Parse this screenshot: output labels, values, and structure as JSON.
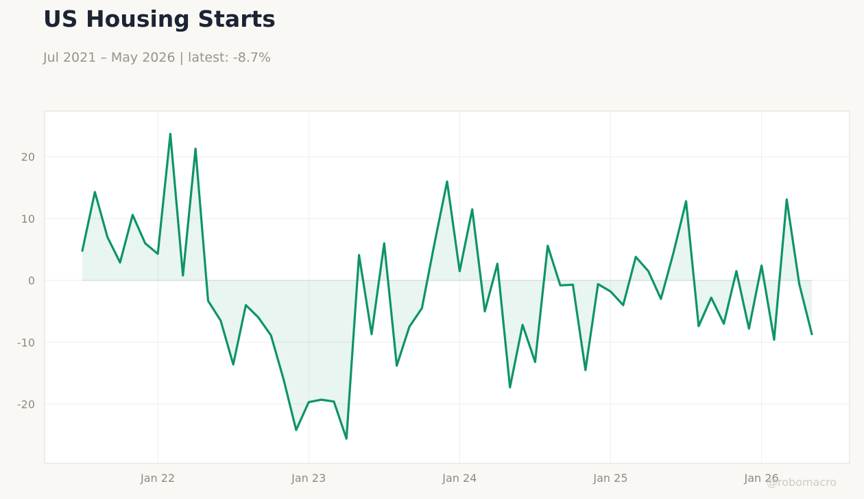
{
  "header": {
    "title": "US Housing Starts",
    "subtitle": "Jul 2021 – May 2026 | latest: -8.7%"
  },
  "watermark": "@robomacro",
  "colors": {
    "background": "#f9f8f5",
    "plot_background": "#ffffff",
    "line": "#0e9467",
    "fill": "#0e9467",
    "grid": "#efeeeb",
    "frame": "#dedcd4",
    "tick_text": "#8d8a84"
  },
  "chart_data": {
    "type": "area",
    "title": "US Housing Starts",
    "subtitle": "Jul 2021 – May 2026 | latest: -8.7%",
    "xlabel": "",
    "ylabel": "",
    "x_start": "2021-07",
    "x_end": "2026-05",
    "x_ticks": [
      {
        "date": "2022-01",
        "label": "Jan 22"
      },
      {
        "date": "2023-01",
        "label": "Jan 23"
      },
      {
        "date": "2024-01",
        "label": "Jan 24"
      },
      {
        "date": "2025-01",
        "label": "Jan 25"
      },
      {
        "date": "2026-01",
        "label": "Jan 26"
      }
    ],
    "y_ticks": [
      20,
      10,
      0,
      -10,
      -20
    ],
    "ylim": [
      -29.6,
      27.4
    ],
    "xlim": [
      "2021-04",
      "2026-08"
    ],
    "grid": true,
    "series": [
      {
        "x": [
          "2021-07",
          "2021-08",
          "2021-09",
          "2021-10",
          "2021-11",
          "2021-12",
          "2022-01",
          "2022-02",
          "2022-03",
          "2022-04",
          "2022-05",
          "2022-06",
          "2022-07",
          "2022-08",
          "2022-09",
          "2022-10",
          "2022-11",
          "2022-12",
          "2023-01",
          "2023-02",
          "2023-03",
          "2023-04",
          "2023-05",
          "2023-06",
          "2023-07",
          "2023-08",
          "2023-09",
          "2023-10",
          "2023-11",
          "2023-12",
          "2024-01",
          "2024-02",
          "2024-03",
          "2024-04",
          "2024-05",
          "2024-06",
          "2024-07",
          "2024-08",
          "2024-09",
          "2024-10",
          "2024-11",
          "2024-12",
          "2025-01",
          "2025-02",
          "2025-03",
          "2025-04",
          "2025-05",
          "2025-06",
          "2025-07",
          "2025-08",
          "2025-09",
          "2025-10",
          "2025-11",
          "2025-12",
          "2026-01",
          "2026-02",
          "2026-03",
          "2026-04",
          "2026-05"
        ],
        "values": [
          4.8,
          14.3,
          7.0,
          2.9,
          10.6,
          6.0,
          4.3,
          23.7,
          0.8,
          21.3,
          -3.3,
          -6.5,
          -13.6,
          -4.0,
          -6.0,
          -8.9,
          -16.0,
          -24.2,
          -19.7,
          -19.3,
          -19.6,
          -25.6,
          4.1,
          -8.7,
          6.0,
          -13.8,
          -7.5,
          -4.5,
          6.0,
          16.0,
          1.5,
          11.5,
          -5.0,
          2.7,
          -17.3,
          -7.2,
          -13.2,
          5.6,
          -0.8,
          -0.7,
          -14.5,
          -0.6,
          -1.8,
          -4.0,
          3.8,
          1.5,
          -3.0,
          4.5,
          12.8,
          -7.4,
          -2.8,
          -7.0,
          1.5,
          -7.8,
          2.4,
          -9.6,
          13.1,
          -0.6,
          -8.7
        ]
      }
    ]
  }
}
